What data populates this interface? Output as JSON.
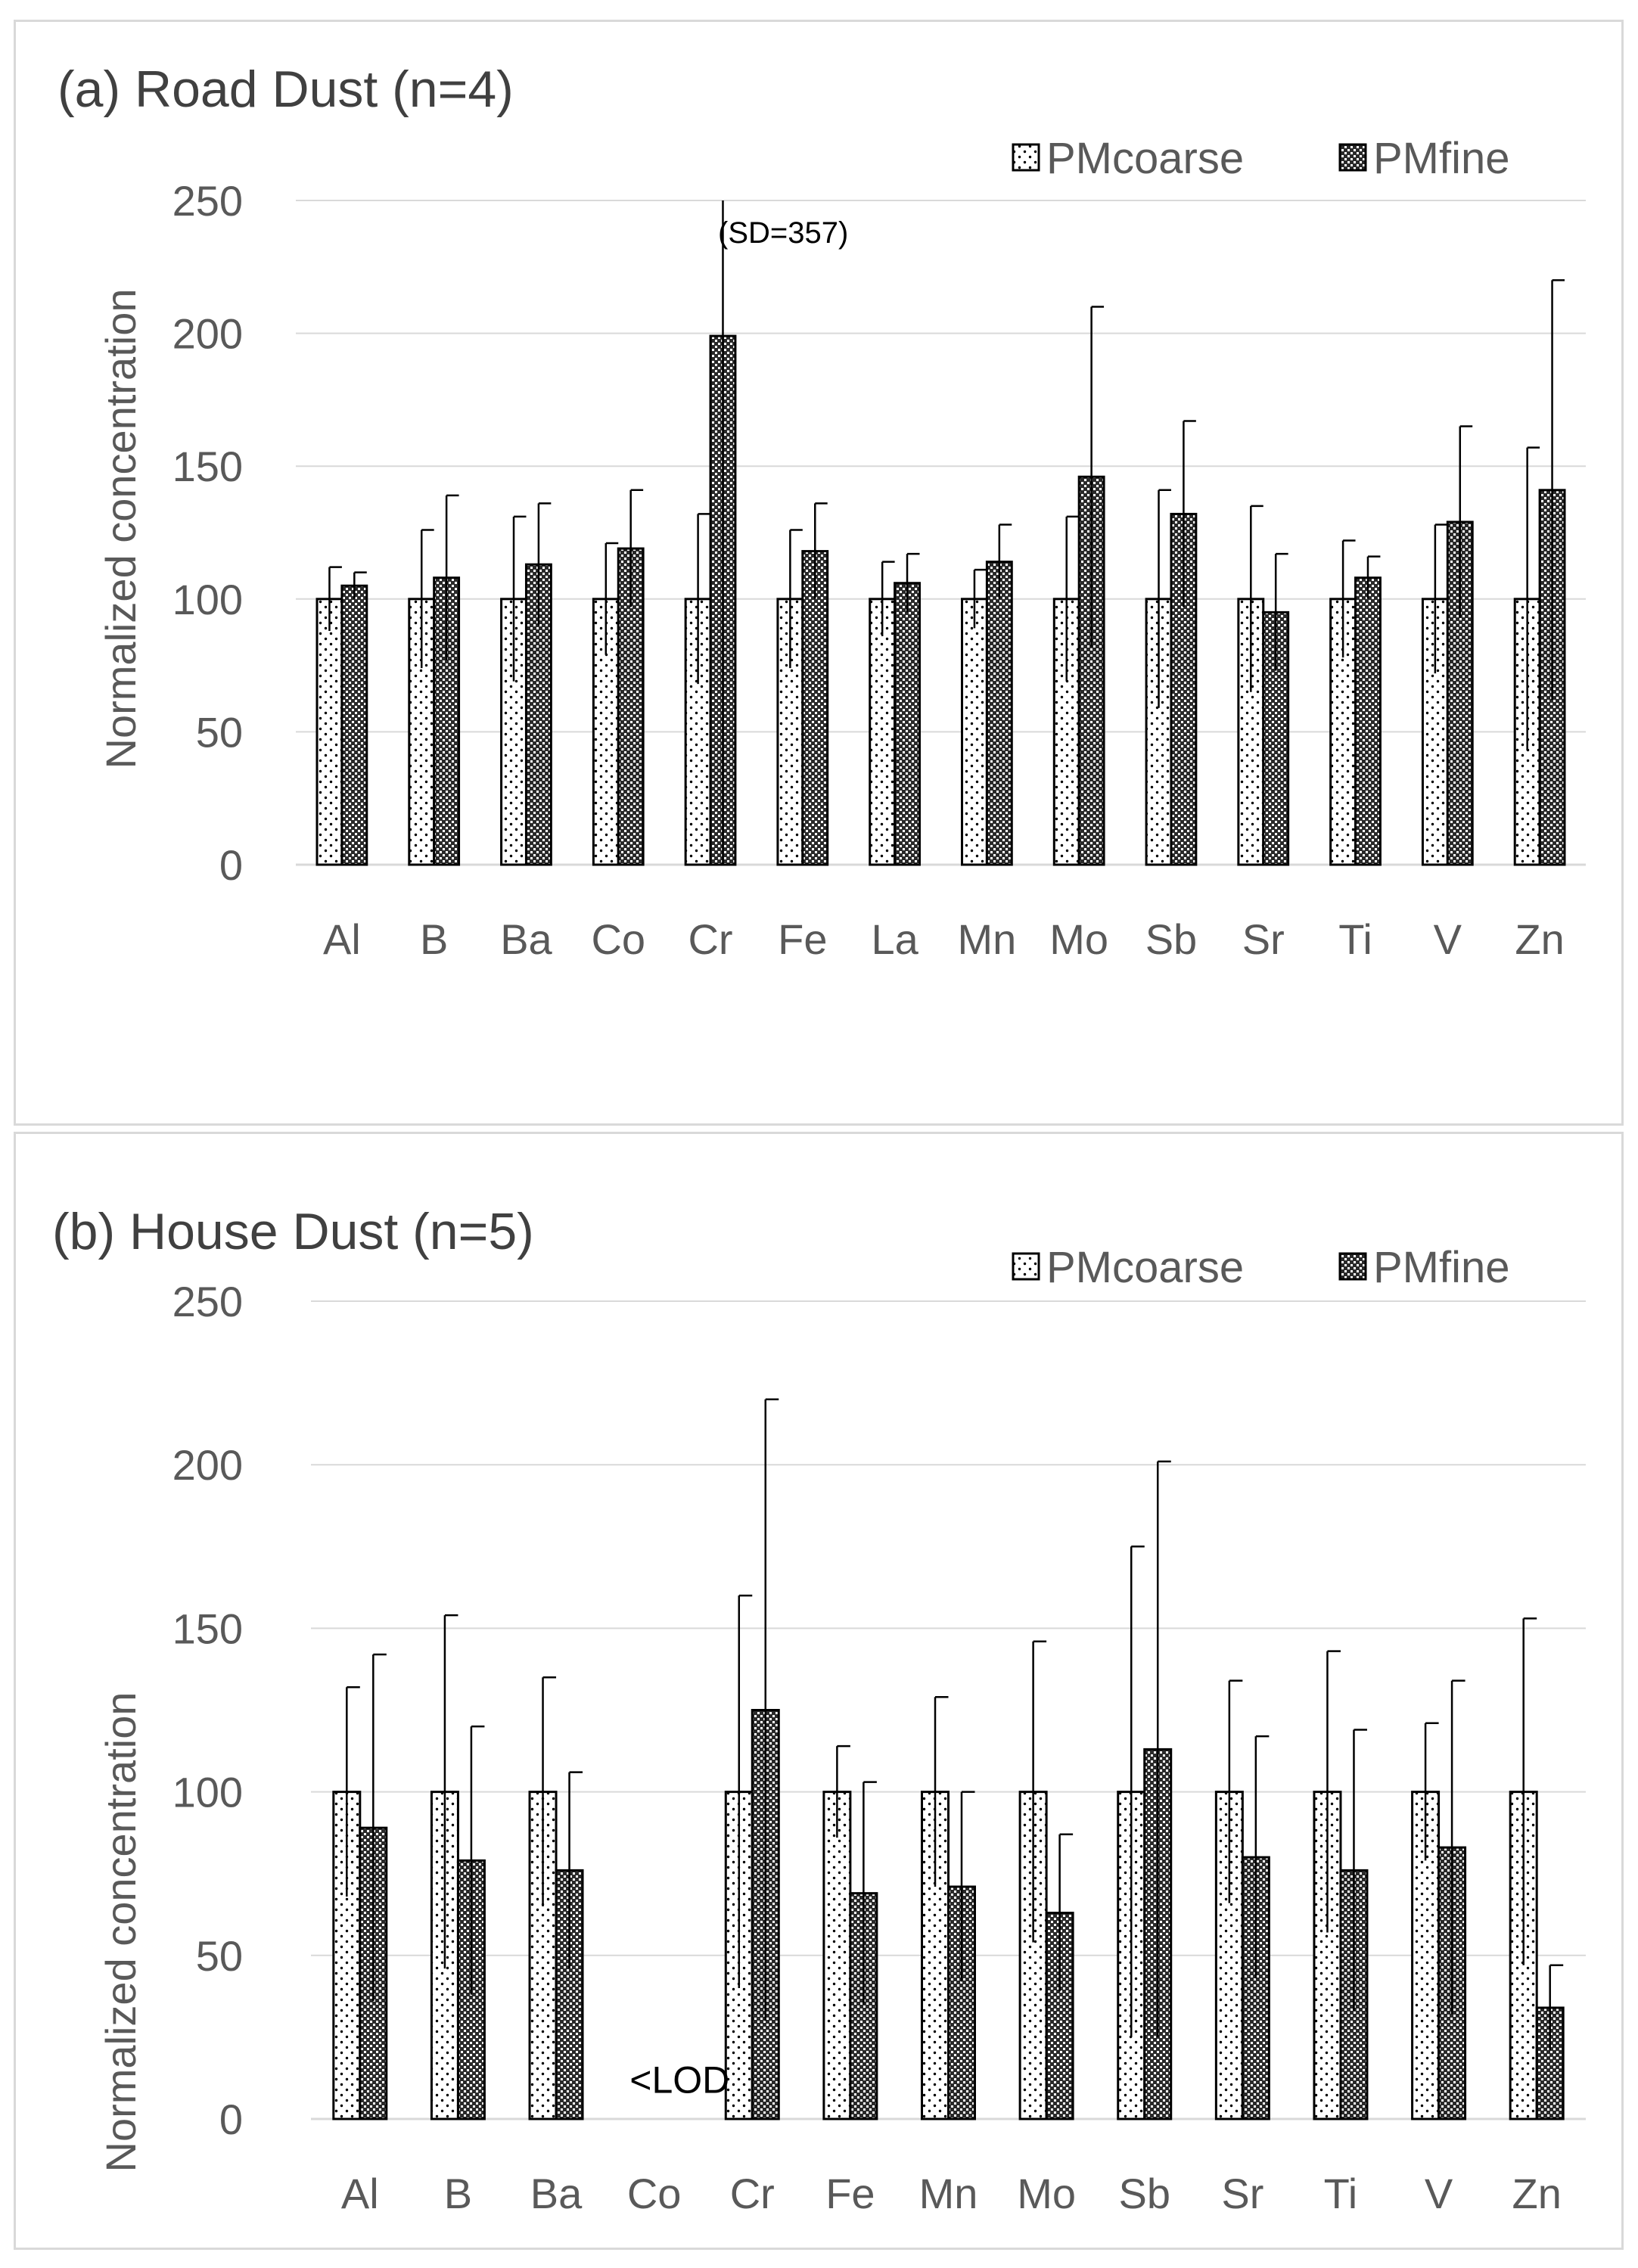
{
  "chart_data": [
    {
      "id": "a",
      "type": "bar",
      "title": "(a) Road Dust (n=4)",
      "ylabel": "Normalized concentration",
      "xlabel": "",
      "ylim": [
        0,
        250
      ],
      "yticks": [
        0,
        50,
        100,
        150,
        200,
        250
      ],
      "legend_position": "top-right",
      "categories": [
        "Al",
        "B",
        "Ba",
        "Co",
        "Cr",
        "Fe",
        "La",
        "Mn",
        "Mo",
        "Sb",
        "Sr",
        "Ti",
        "V",
        "Zn"
      ],
      "series": [
        {
          "name": "PMcoarse",
          "values": [
            100,
            100,
            100,
            100,
            100,
            100,
            100,
            100,
            100,
            100,
            100,
            100,
            100,
            100
          ],
          "error": [
            12,
            26,
            31,
            21,
            32,
            26,
            14,
            11,
            31,
            41,
            35,
            22,
            28,
            57
          ]
        },
        {
          "name": "PMfine",
          "values": [
            105,
            108,
            113,
            119,
            199,
            118,
            106,
            114,
            146,
            132,
            95,
            108,
            129,
            141
          ],
          "error": [
            5,
            31,
            23,
            22,
            357,
            18,
            11,
            14,
            64,
            35,
            22,
            8,
            36,
            79
          ]
        }
      ],
      "annotations": [
        {
          "text": "(SD=357)",
          "category": "Cr",
          "y": 238
        }
      ]
    },
    {
      "id": "b",
      "type": "bar",
      "title": "(b) House Dust (n=5)",
      "ylabel": "Normalized concentration",
      "xlabel": "",
      "ylim": [
        0,
        250
      ],
      "yticks": [
        0,
        50,
        100,
        150,
        200,
        250
      ],
      "legend_position": "top-right",
      "categories": [
        "Al",
        "B",
        "Ba",
        "Co",
        "Cr",
        "Fe",
        "Mn",
        "Mo",
        "Sb",
        "Sr",
        "Ti",
        "V",
        "Zn"
      ],
      "series": [
        {
          "name": "PMcoarse",
          "values": [
            100,
            100,
            100,
            null,
            100,
            100,
            100,
            100,
            100,
            100,
            100,
            100,
            100
          ],
          "error": [
            32,
            54,
            35,
            null,
            60,
            14,
            29,
            46,
            75,
            34,
            43,
            21,
            53
          ]
        },
        {
          "name": "PMfine",
          "values": [
            89,
            79,
            76,
            null,
            125,
            69,
            71,
            63,
            113,
            80,
            76,
            83,
            34
          ],
          "error": [
            53,
            41,
            30,
            null,
            95,
            34,
            29,
            24,
            88,
            37,
            43,
            51,
            13
          ]
        }
      ],
      "annotations": [
        {
          "text": "<LOD",
          "category": "Co",
          "y": 8
        }
      ]
    }
  ]
}
